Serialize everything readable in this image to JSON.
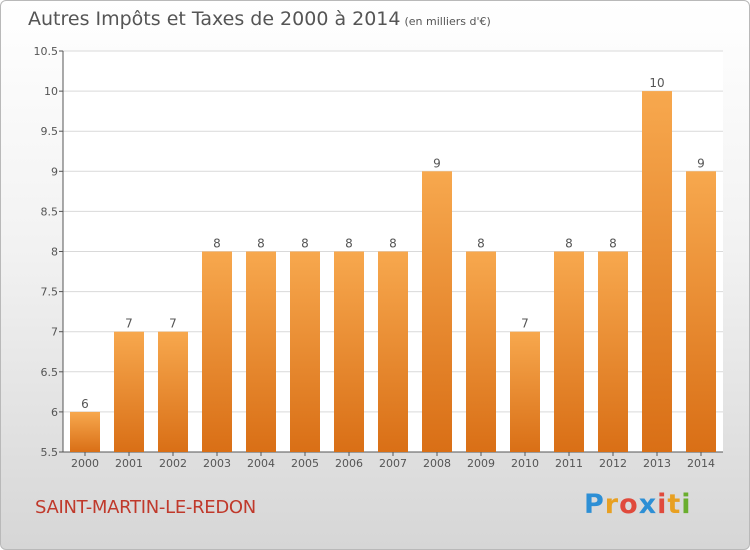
{
  "title": "Autres Impôts et Taxes de 2000 à 2014",
  "title_unit": "(en milliers d'€)",
  "commune": "SAINT-MARTIN-LE-REDON",
  "logo": {
    "letters": [
      "P",
      "r",
      "o",
      "x",
      "i",
      "t",
      "i"
    ],
    "colors": [
      "#2d8fd5",
      "#e8a021",
      "#e04a3c",
      "#2d8fd5",
      "#e04a3c",
      "#e8a021",
      "#6aae2e"
    ]
  },
  "colors": {
    "bar_top": "#f7a84e",
    "bar_bottom": "#d96f16",
    "grid": "#d9d9d9",
    "axis": "#555555"
  },
  "chart_data": {
    "type": "bar",
    "title": "Autres Impôts et Taxes de 2000 à 2014",
    "categories": [
      "2000",
      "2001",
      "2002",
      "2003",
      "2004",
      "2005",
      "2006",
      "2007",
      "2008",
      "2009",
      "2010",
      "2011",
      "2012",
      "2013",
      "2014"
    ],
    "values": [
      6,
      7,
      7,
      8,
      8,
      8,
      8,
      8,
      9,
      8,
      7,
      8,
      8,
      10,
      9
    ],
    "labels": [
      "6",
      "7",
      "7",
      "8",
      "8",
      "8",
      "8",
      "8",
      "9",
      "8",
      "7",
      "8",
      "8",
      "10",
      "9"
    ],
    "ylim": [
      5.5,
      10.5
    ],
    "yticks": [
      "5.5",
      "6",
      "6.5",
      "7",
      "7.5",
      "8",
      "8.5",
      "9",
      "9.5",
      "10",
      "10.5"
    ],
    "grid": true,
    "xlabel": "",
    "ylabel": ""
  }
}
